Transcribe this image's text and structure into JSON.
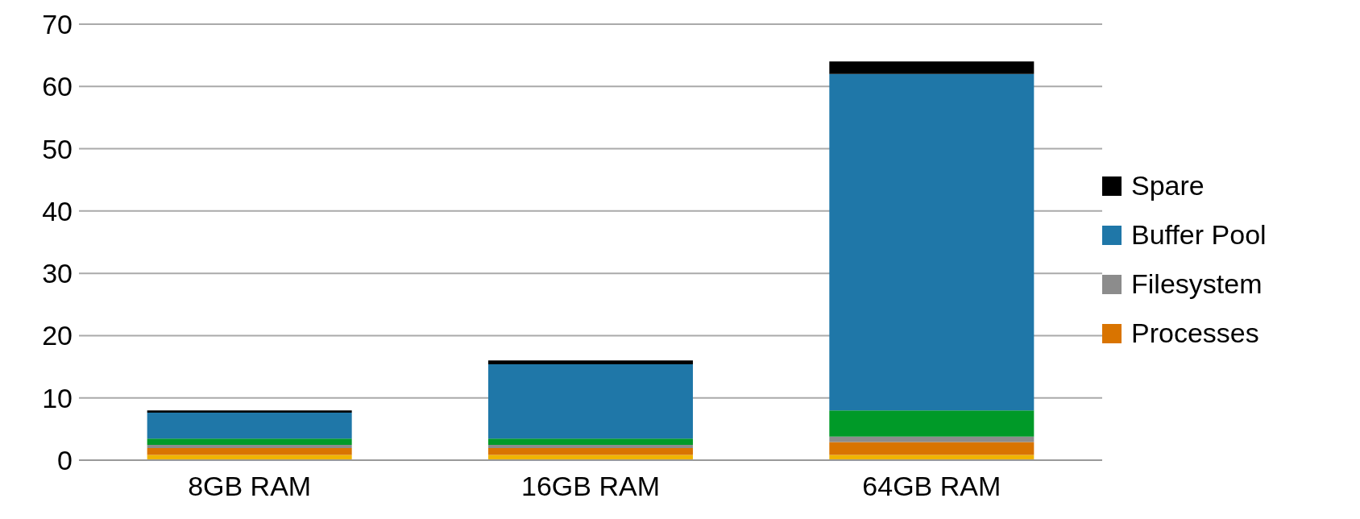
{
  "chart_data": {
    "type": "bar",
    "stacked": true,
    "categories": [
      "8GB RAM",
      "16GB RAM",
      "64GB RAM"
    ],
    "series": [
      {
        "color": "#f0b400",
        "values": [
          0.85,
          0.85,
          0.85
        ]
      },
      {
        "name": "Processes",
        "color": "#d97400",
        "values": [
          1.1,
          1.1,
          2.05
        ]
      },
      {
        "name": "Filesystem",
        "color": "#8c8c8c",
        "values": [
          0.5,
          0.5,
          0.9
        ]
      },
      {
        "color": "#009a28",
        "values": [
          1,
          1,
          4.2
        ]
      },
      {
        "name": "Buffer Pool",
        "color": "#1f77a8",
        "values": [
          4.2,
          11.95,
          54
        ]
      },
      {
        "name": "Spare",
        "color": "#000000",
        "values": [
          0.35,
          0.6,
          2
        ]
      }
    ],
    "ylim": [
      0,
      70
    ],
    "yticks": [
      0,
      10,
      20,
      30,
      40,
      50,
      60,
      70
    ],
    "grid": "y",
    "legend": "right"
  }
}
